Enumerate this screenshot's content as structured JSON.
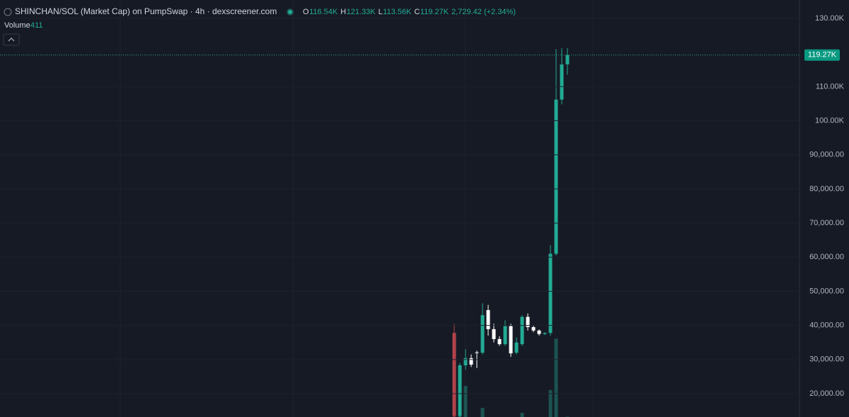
{
  "chart_data": {
    "type": "candlestick",
    "title": "SHINCHAN/SOL (Market Cap) on PumpSwap · 4h · dexscreener.com",
    "ohlc_header": {
      "open_key": "O",
      "open": "116.54K",
      "high_key": "H",
      "high": "121.33K",
      "low_key": "L",
      "low": "113.56K",
      "close_key": "C",
      "close": "119.27K",
      "change": "2,729.42 (+2.34%)"
    },
    "volume_label": "Volume",
    "volume_value": "411",
    "last_price": {
      "value": 119270,
      "label": "119.27K"
    },
    "open": [
      37800,
      13500,
      28300,
      30400,
      32100,
      32000,
      44500,
      38900,
      36000,
      34500,
      39800,
      32000,
      34500,
      42500,
      39500,
      38500,
      37500,
      37800,
      61000,
      106200,
      116540
    ],
    "high": [
      40500,
      29000,
      33000,
      31500,
      32600,
      46500,
      46000,
      40500,
      36800,
      41500,
      40500,
      36500,
      43000,
      43500,
      40000,
      38800,
      38000,
      63500,
      121000,
      121300,
      121330
    ],
    "low": [
      13000,
      13000,
      27000,
      27800,
      27500,
      31500,
      37000,
      35000,
      34000,
      34000,
      30800,
      31500,
      34000,
      38500,
      38000,
      37000,
      37200,
      37000,
      60500,
      104800,
      113560
    ],
    "close": [
      13500,
      28300,
      30400,
      28500,
      31900,
      43000,
      38900,
      36000,
      34500,
      39800,
      31800,
      35000,
      42500,
      39500,
      38500,
      37500,
      37800,
      61000,
      106200,
      116500,
      119270
    ],
    "colors": [
      "#b2434a",
      "#22ab94",
      "#22ab94",
      "#ffffff",
      "#ffffff",
      "#22ab94",
      "#ffffff",
      "#ffffff",
      "#ffffff",
      "#22ab94",
      "#ffffff",
      "#22ab94",
      "#22ab94",
      "#ffffff",
      "#ffffff",
      "#ffffff",
      "#22ab94",
      "#22ab94",
      "#22ab94",
      "#22ab94",
      "#22ab94"
    ],
    "volume": [
      19500,
      19500,
      35700,
      0,
      0,
      10500,
      0,
      0,
      0,
      0,
      0,
      0,
      4900,
      0,
      0,
      0,
      0,
      30900,
      90000,
      0,
      411
    ],
    "vlim": [
      0,
      130000
    ],
    "ylim": [
      13150,
      135400
    ],
    "yticks": [
      {
        "value": 20000,
        "label": "20,000.00"
      },
      {
        "value": 30000,
        "label": "30,000.00"
      },
      {
        "value": 40000,
        "label": "40,000.00"
      },
      {
        "value": 50000,
        "label": "50,000.00"
      },
      {
        "value": 60000,
        "label": "60,000.00"
      },
      {
        "value": 70000,
        "label": "70,000.00"
      },
      {
        "value": 80000,
        "label": "80,000.00"
      },
      {
        "value": 90000,
        "label": "90,000.00"
      },
      {
        "value": 100000,
        "label": "100.00K"
      },
      {
        "value": 110000,
        "label": "110.00K"
      },
      {
        "value": 130000,
        "label": "130.00K"
      }
    ],
    "grid": true
  }
}
